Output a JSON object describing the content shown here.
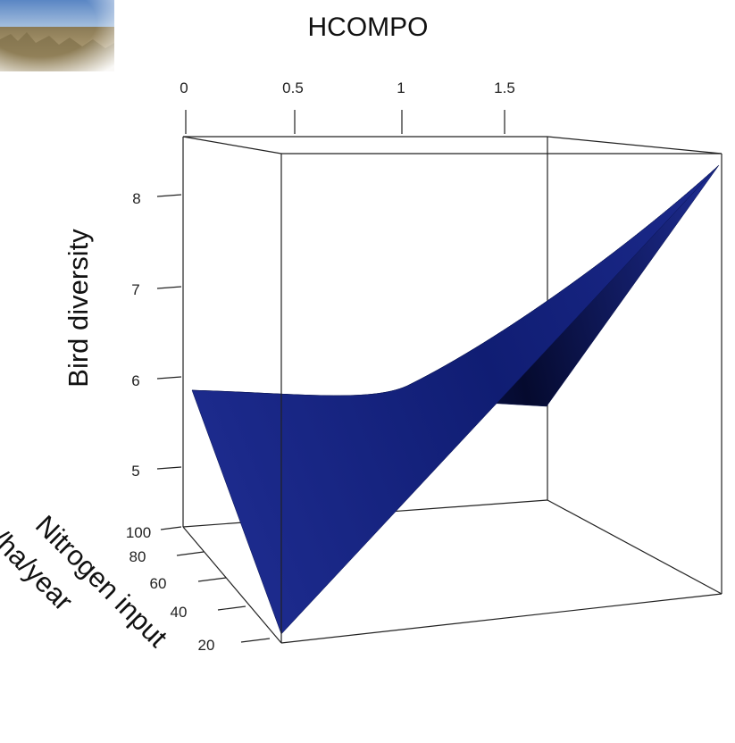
{
  "chart_data": {
    "type": "surface",
    "title": "HCOMPO",
    "xlabel": "HCOMPO",
    "ylabel": "Nitrogen input q/ha/year",
    "zlabel": "Bird diversity",
    "x_ticks": [
      "0",
      "0.5",
      "1",
      "1.5"
    ],
    "y_ticks": [
      "100",
      "80",
      "60",
      "40",
      "20"
    ],
    "z_ticks": [
      "8",
      "7",
      "6",
      "5"
    ],
    "x_range": [
      0,
      2.1
    ],
    "y_range": [
      5,
      110
    ],
    "z_range": [
      4.5,
      8.6
    ],
    "surface_corners": [
      {
        "x": 0,
        "y": 100,
        "z": 5.9
      },
      {
        "x": 0,
        "y": 5,
        "z": 3.1
      },
      {
        "x": 2.1,
        "y": 5,
        "z": 8.4
      },
      {
        "x": 2.1,
        "y": 100,
        "z": 8.4
      }
    ],
    "colors": {
      "surface": "#1c2a8c",
      "surface_dark": "#050a2e",
      "box": "#222222"
    }
  }
}
